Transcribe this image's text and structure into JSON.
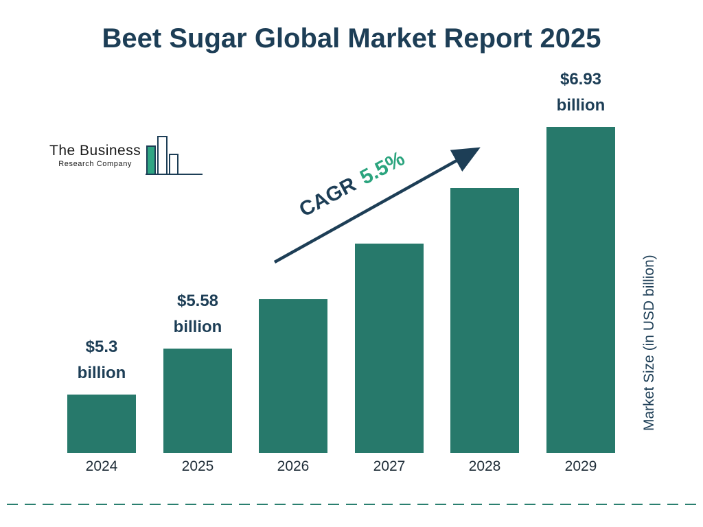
{
  "title": "Beet Sugar Global Market Report 2025",
  "logo": {
    "line1": "The Business",
    "line2": "Research Company"
  },
  "cagr": {
    "prefix": "CAGR",
    "value": "5.5%"
  },
  "y_axis_label": "Market Size (in USD billion)",
  "colors": {
    "bar": "#27796b",
    "title": "#1d3e56",
    "arrow": "#1d3e56",
    "cagr_green": "#2ba47e",
    "dashed_line": "#2a7f6f"
  },
  "chart_data": {
    "type": "bar",
    "title": "Beet Sugar Global Market Report 2025",
    "categories": [
      "2024",
      "2025",
      "2026",
      "2027",
      "2028",
      "2029"
    ],
    "values": [
      5.3,
      5.58,
      5.88,
      6.22,
      6.56,
      6.93
    ],
    "value_labels": [
      "$5.3 billion",
      "$5.58 billion",
      "",
      "",
      "",
      "$6.93 billion"
    ],
    "ylabel": "Market Size (in USD billion)",
    "xlabel": "",
    "cagr": "5.5%",
    "legend": "none",
    "grid": false,
    "baseline_starts_above_zero": true
  }
}
